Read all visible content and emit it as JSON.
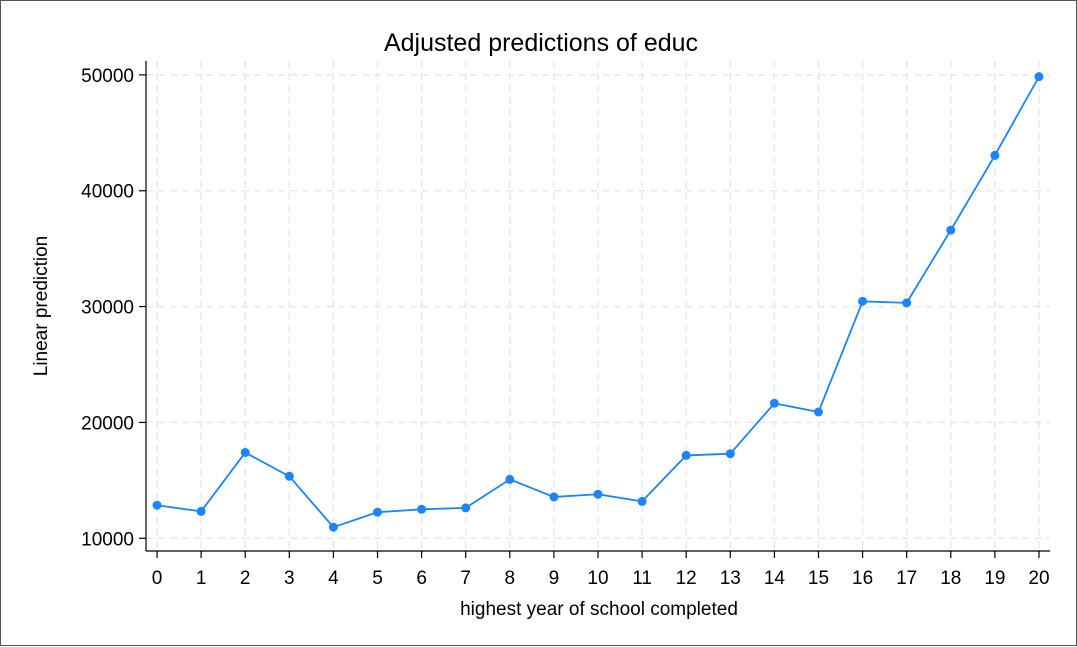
{
  "chart_data": {
    "type": "line",
    "title": "Adjusted predictions of educ",
    "xlabel": "highest year of school completed",
    "ylabel": "Linear prediction",
    "x": [
      0,
      1,
      2,
      3,
      4,
      5,
      6,
      7,
      8,
      9,
      10,
      11,
      12,
      13,
      14,
      15,
      16,
      17,
      18,
      19,
      20
    ],
    "xticks": [
      "0",
      "1",
      "2",
      "3",
      "4",
      "5",
      "6",
      "7",
      "8",
      "9",
      "10",
      "11",
      "12",
      "13",
      "14",
      "15",
      "16",
      "17",
      "18",
      "19",
      "20"
    ],
    "yticks": [
      10000,
      20000,
      30000,
      40000,
      50000
    ],
    "ytick_labels": [
      "10000",
      "20000",
      "30000",
      "40000",
      "50000"
    ],
    "xlim": [
      -0.25,
      20.25
    ],
    "ylim": [
      8900,
      51200
    ],
    "grid": true,
    "series": [
      {
        "color": "#1a85ff",
        "values": [
          12850,
          12320,
          17400,
          15350,
          10950,
          12250,
          12500,
          12620,
          15080,
          13570,
          13800,
          13180,
          17150,
          17300,
          21650,
          20900,
          30450,
          30320,
          36600,
          43050,
          49850
        ]
      }
    ]
  }
}
